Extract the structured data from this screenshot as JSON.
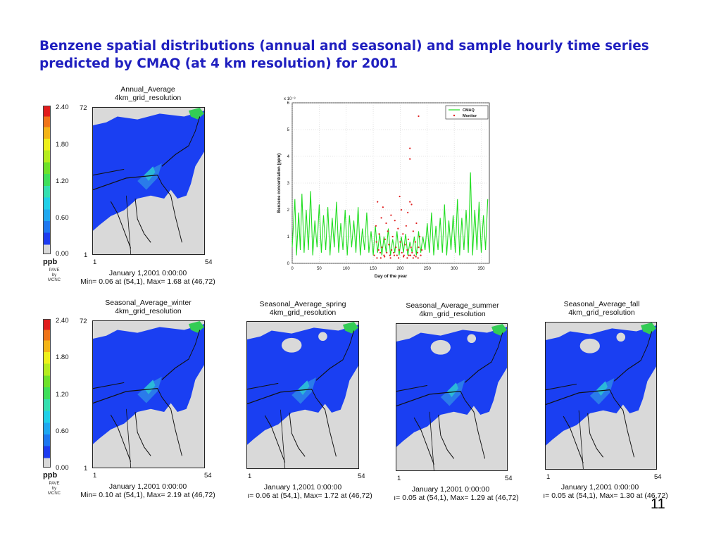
{
  "slide": {
    "title_line1": "Benzene spatial distributions (annual and seasonal) and sample hourly time series",
    "title_line2": "predicted by CMAQ (at 4 km resolution) for 2001",
    "page_number": "11"
  },
  "colorbar": {
    "ticks": [
      "2.40",
      "1.80",
      "1.20",
      "0.60",
      "0.00"
    ],
    "unit": "ppb",
    "credit": [
      "PAVE",
      "by",
      "MCNC"
    ]
  },
  "maps": [
    {
      "title": "Annual_Average",
      "subtitle": "4km_grid_resolution",
      "date": "January 1,2001 0:00:00",
      "minmax": "Min= 0.06 at (54,1), Max= 1.68 at (46,72)",
      "y_top": "72",
      "y_bottom": "1",
      "x_left": "1",
      "x_right": "54"
    },
    {
      "title": "Seasonal_Average_winter",
      "subtitle": "4km_grid_resolution",
      "date": "January 1,2001 0:00:00",
      "minmax": "Min= 0.10 at (54,1), Max= 2.19 at (46,72)",
      "y_top": "72",
      "y_bottom": "1",
      "x_left": "1",
      "x_right": "54"
    },
    {
      "title": "Seasonal_Average_spring",
      "subtitle": "4km_grid_resolution",
      "date": "January 1,2001 0:00:00",
      "minmax": "ı= 0.06 at (54,1), Max= 1.72 at (46,72)",
      "x_left": "1",
      "x_right": "54"
    },
    {
      "title": "Seasonal_Average_summer",
      "subtitle": "4km_grid_resolution",
      "date": "January 1,2001 0:00:00",
      "minmax": "ı= 0.05 at (54,1), Max= 1.29 at (46,72)",
      "x_left": "1",
      "x_right": "54"
    },
    {
      "title": "Seasonal_Average_fall",
      "subtitle": "4km_grid_resolution",
      "date": "January 1,2001 0:00:00",
      "minmax": "ı= 0.05 at (54,1), Max= 1.30 at (46,72)",
      "x_left": "1",
      "x_right": "54"
    }
  ],
  "colors": {
    "title": "#1f1fbf",
    "land_gray": "#d9d9d9",
    "conc_blue": "#1a3ff2",
    "conc_lightblue": "#2a7bea",
    "conc_cyan": "#2bb8d8",
    "cmaq_green": "#22dd22",
    "monitor_red": "#e02020"
  },
  "chart_data": {
    "type": "line",
    "title": "",
    "xlabel": "Day of the year",
    "ylabel": "Benzene concentration (ppm)",
    "y_multiplier": "x 10⁻³",
    "xlim": [
      0,
      365
    ],
    "ylim": [
      0,
      6
    ],
    "xticks": [
      0,
      50,
      100,
      150,
      200,
      250,
      300,
      350
    ],
    "yticks": [
      0,
      1,
      2,
      3,
      4,
      5,
      6
    ],
    "legend_position": "top-right",
    "grid": true,
    "series": [
      {
        "name": "CMAQ",
        "style": "line",
        "color": "#22dd22",
        "x": [
          0,
          5,
          8,
          12,
          15,
          18,
          22,
          26,
          30,
          34,
          38,
          42,
          46,
          50,
          54,
          58,
          62,
          66,
          70,
          74,
          78,
          82,
          86,
          90,
          94,
          98,
          102,
          106,
          110,
          114,
          118,
          122,
          126,
          130,
          134,
          138,
          142,
          146,
          150,
          154,
          158,
          162,
          166,
          170,
          174,
          178,
          182,
          186,
          190,
          194,
          198,
          202,
          206,
          210,
          214,
          218,
          222,
          226,
          230,
          234,
          238,
          242,
          246,
          250,
          254,
          258,
          262,
          266,
          270,
          274,
          278,
          282,
          286,
          290,
          294,
          298,
          302,
          306,
          310,
          314,
          318,
          322,
          326,
          330,
          334,
          338,
          342,
          346,
          350,
          354,
          358,
          362
        ],
        "y": [
          0.6,
          2.4,
          0.3,
          1.9,
          0.5,
          2.6,
          0.4,
          2.0,
          0.5,
          2.7,
          0.3,
          1.6,
          0.6,
          2.2,
          0.4,
          1.8,
          0.5,
          2.1,
          0.3,
          1.7,
          0.6,
          2.3,
          0.4,
          1.5,
          0.5,
          2.0,
          0.3,
          1.8,
          0.6,
          1.6,
          0.4,
          2.1,
          0.3,
          1.3,
          0.5,
          1.9,
          0.4,
          1.2,
          0.3,
          1.4,
          0.4,
          1.1,
          0.3,
          1.0,
          0.4,
          1.3,
          0.3,
          0.9,
          0.4,
          1.2,
          0.3,
          1.0,
          0.4,
          1.1,
          0.3,
          0.8,
          0.4,
          1.0,
          0.3,
          1.2,
          0.4,
          1.0,
          0.5,
          1.5,
          0.4,
          1.9,
          0.3,
          1.4,
          0.5,
          1.7,
          0.4,
          2.2,
          0.3,
          1.6,
          0.5,
          1.8,
          0.4,
          2.4,
          0.3,
          1.7,
          0.5,
          2.0,
          0.4,
          3.4,
          0.3,
          2.0,
          0.5,
          2.3,
          0.4,
          1.8,
          0.5,
          2.4
        ]
      },
      {
        "name": "Monitor",
        "style": "markers",
        "color": "#e02020",
        "x": [
          152,
          155,
          156,
          158,
          160,
          161,
          163,
          165,
          166,
          168,
          170,
          172,
          174,
          175,
          177,
          179,
          181,
          183,
          184,
          186,
          188,
          190,
          192,
          194,
          196,
          198,
          200,
          202,
          203,
          205,
          207,
          209,
          211,
          213,
          215,
          216,
          218,
          220,
          222,
          224,
          226,
          228,
          230,
          232,
          234,
          236,
          238,
          240,
          157,
          164,
          171,
          182,
          189,
          197,
          206,
          213,
          219,
          224,
          229,
          233,
          199,
          214,
          221,
          218
        ],
        "y": [
          0.3,
          1.4,
          0.8,
          2.3,
          0.5,
          1.1,
          0.4,
          1.7,
          0.6,
          2.1,
          0.3,
          0.9,
          1.5,
          0.4,
          1.2,
          0.7,
          0.3,
          1.8,
          0.5,
          1.0,
          0.4,
          1.6,
          0.6,
          0.3,
          1.3,
          0.5,
          0.8,
          2.0,
          0.4,
          1.1,
          0.3,
          0.7,
          1.4,
          0.5,
          0.9,
          0.3,
          2.3,
          0.6,
          0.4,
          1.2,
          0.3,
          0.8,
          1.5,
          0.4,
          0.6,
          1.0,
          0.3,
          0.5,
          0.2,
          0.2,
          0.25,
          0.2,
          0.3,
          0.2,
          0.25,
          0.2,
          0.3,
          0.2,
          0.25,
          0.2,
          2.5,
          1.9,
          2.2,
          4.3
        ]
      }
    ],
    "extra_monitor_points": [
      {
        "x": 218,
        "y": 3.9
      },
      {
        "x": 234,
        "y": 5.5
      }
    ]
  }
}
